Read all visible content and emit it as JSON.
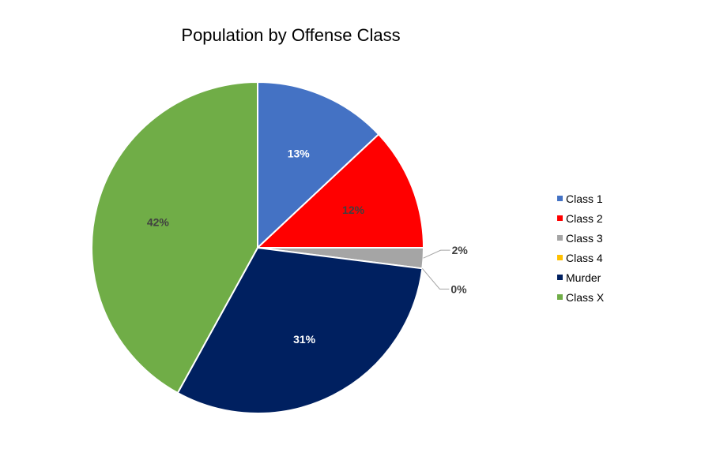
{
  "chart_data": {
    "type": "pie",
    "title": "Population by Offense Class",
    "categories": [
      "Class 1",
      "Class 2",
      "Class 3",
      "Class 4",
      "Murder",
      "Class X"
    ],
    "values": [
      13,
      12,
      2,
      0,
      31,
      42
    ],
    "labels": [
      "13%",
      "12%",
      "2%",
      "0%",
      "31%",
      "42%"
    ],
    "colors": [
      "#4472C4",
      "#FF0000",
      "#A5A5A5",
      "#FFC000",
      "#002060",
      "#70AD47"
    ],
    "legend_position": "right"
  }
}
